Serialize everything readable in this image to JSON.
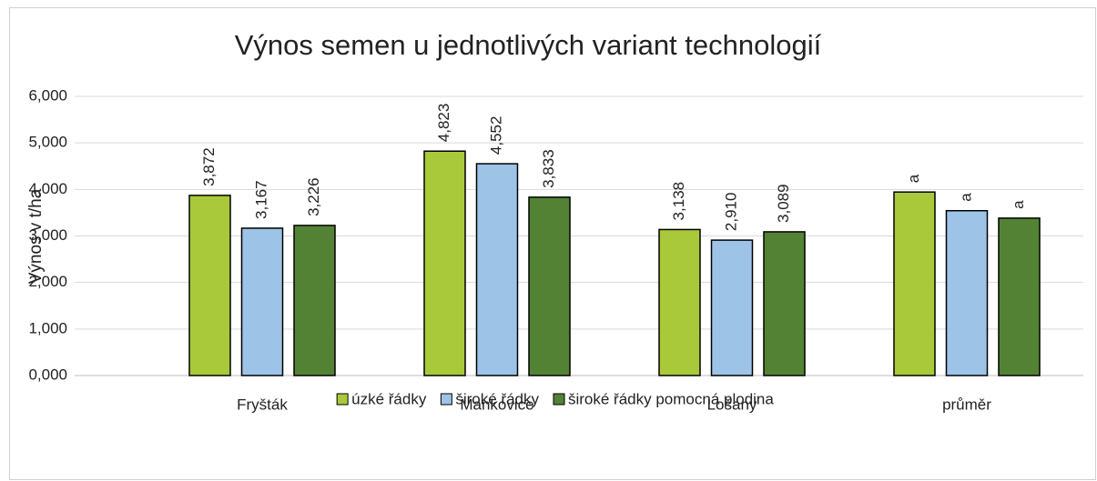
{
  "chart_data": {
    "type": "bar",
    "title": "Výnos semen u jednotlivých variant technologií",
    "y_label": "Výnos v t/ha",
    "categories": [
      "Fryšták",
      "Mankovice",
      "Lošany",
      "průměr"
    ],
    "series": [
      {
        "name": "úzké řádky",
        "color": "#a9c93a",
        "values": [
          3.872,
          4.823,
          3.138,
          3.944
        ],
        "value_labels": [
          "3,872",
          "4,823",
          "3,138",
          "a"
        ]
      },
      {
        "name": "široké řádky",
        "color": "#9dc3e6",
        "values": [
          3.167,
          4.552,
          2.91,
          3.543
        ],
        "value_labels": [
          "3,167",
          "4,552",
          "2,910",
          "a"
        ]
      },
      {
        "name": "široké řádky pomocná plodina",
        "color": "#548235",
        "values": [
          3.226,
          3.833,
          3.089,
          3.383
        ],
        "value_labels": [
          "3,226",
          "3,833",
          "3,089",
          "a"
        ]
      }
    ],
    "ylim": [
      0,
      6
    ],
    "yticks": [
      {
        "value": 0,
        "label": "0,000"
      },
      {
        "value": 1,
        "label": "1,000"
      },
      {
        "value": 2,
        "label": "2,000"
      },
      {
        "value": 3,
        "label": "3,000"
      },
      {
        "value": 4,
        "label": "4,000"
      },
      {
        "value": 5,
        "label": "5,000"
      },
      {
        "value": 6,
        "label": "6,000"
      }
    ],
    "grid": true,
    "legend": "bottom"
  }
}
